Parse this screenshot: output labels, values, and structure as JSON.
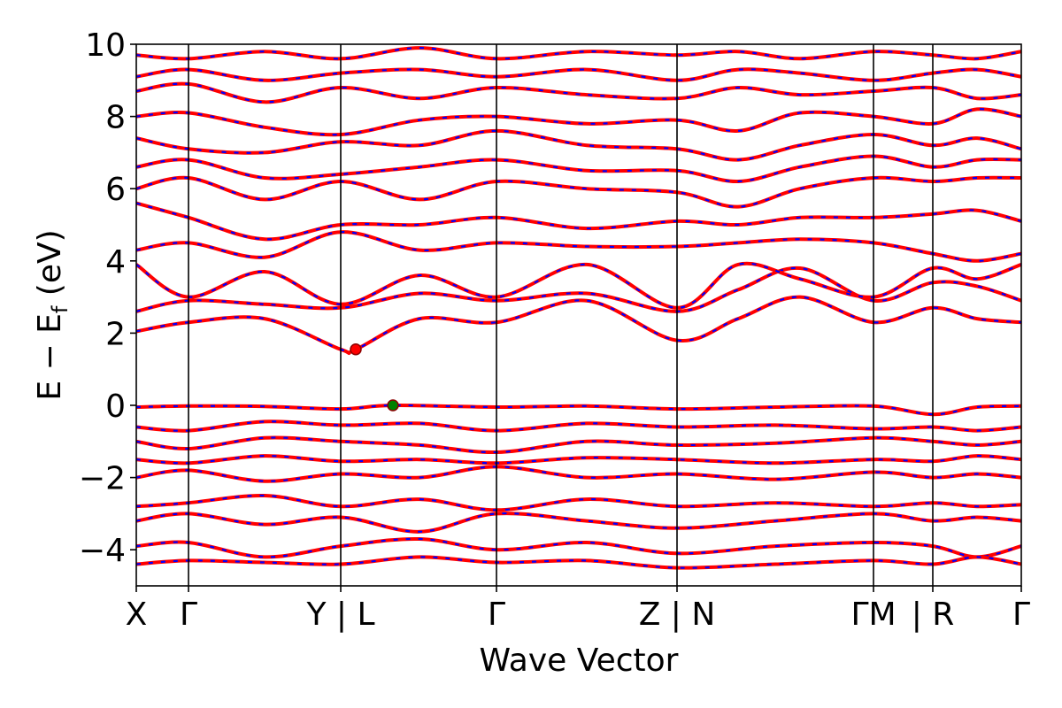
{
  "chart_data": {
    "type": "line",
    "title": "",
    "xlabel": "Wave Vector",
    "ylabel": "E − E_f (eV)",
    "ylabel_main": "E − E",
    "ylabel_sub": "f",
    "ylabel_unit": " (eV)",
    "ylim": [
      -5,
      10
    ],
    "yticks": [
      10,
      8,
      6,
      4,
      2,
      0,
      -2,
      -4
    ],
    "ytick_labels": [
      "10",
      "8",
      "6",
      "4",
      "2",
      "0",
      "−2",
      "−4"
    ],
    "xlim": [
      0,
      1
    ],
    "kpoints": [
      {
        "label": "X",
        "x": 0.0
      },
      {
        "label": "Γ",
        "x": 0.059
      },
      {
        "label": "Y | L",
        "x": 0.231
      },
      {
        "label": "Γ",
        "x": 0.407
      },
      {
        "label": "Z | N",
        "x": 0.611
      },
      {
        "label": "ΓM",
        "x": 0.833
      },
      {
        "label": "| R",
        "x": 0.9
      },
      {
        "label": "Γ",
        "x": 1.0
      }
    ],
    "grid": false,
    "legend": "none",
    "line_style": "red solid with blue dashed overlay",
    "colors": {
      "solid": "#ff0000",
      "dashed": "#0000ff",
      "cbm_marker": "#ff0000",
      "vbm_marker": "#008000"
    },
    "markers": [
      {
        "name": "CBM",
        "x": 0.248,
        "y": 1.55,
        "color": "#ff0000"
      },
      {
        "name": "VBM",
        "x": 0.29,
        "y": 0.0,
        "color": "#008000"
      }
    ],
    "series": [
      {
        "values": [
          [
            0.0,
            -0.05
          ],
          [
            0.059,
            -0.02
          ],
          [
            0.145,
            -0.03
          ],
          [
            0.231,
            -0.1
          ],
          [
            0.29,
            0.0
          ],
          [
            0.407,
            -0.05
          ],
          [
            0.509,
            -0.02
          ],
          [
            0.611,
            -0.1
          ],
          [
            0.722,
            -0.05
          ],
          [
            0.833,
            -0.02
          ],
          [
            0.9,
            -0.25
          ],
          [
            0.95,
            -0.05
          ],
          [
            1.0,
            -0.02
          ]
        ]
      },
      {
        "values": [
          [
            0.0,
            -0.6
          ],
          [
            0.059,
            -0.7
          ],
          [
            0.145,
            -0.45
          ],
          [
            0.231,
            -0.55
          ],
          [
            0.32,
            -0.5
          ],
          [
            0.407,
            -0.7
          ],
          [
            0.509,
            -0.5
          ],
          [
            0.611,
            -0.6
          ],
          [
            0.722,
            -0.55
          ],
          [
            0.833,
            -0.65
          ],
          [
            0.9,
            -0.6
          ],
          [
            0.95,
            -0.7
          ],
          [
            1.0,
            -0.6
          ]
        ]
      },
      {
        "values": [
          [
            0.0,
            -1.0
          ],
          [
            0.059,
            -1.2
          ],
          [
            0.145,
            -0.9
          ],
          [
            0.231,
            -1.0
          ],
          [
            0.32,
            -1.1
          ],
          [
            0.407,
            -1.3
          ],
          [
            0.509,
            -1.0
          ],
          [
            0.611,
            -1.1
          ],
          [
            0.722,
            -1.05
          ],
          [
            0.833,
            -0.9
          ],
          [
            0.9,
            -1.0
          ],
          [
            0.95,
            -1.1
          ],
          [
            1.0,
            -1.0
          ]
        ]
      },
      {
        "values": [
          [
            0.0,
            -1.5
          ],
          [
            0.059,
            -1.6
          ],
          [
            0.145,
            -1.4
          ],
          [
            0.231,
            -1.55
          ],
          [
            0.32,
            -1.5
          ],
          [
            0.407,
            -1.6
          ],
          [
            0.509,
            -1.45
          ],
          [
            0.611,
            -1.5
          ],
          [
            0.722,
            -1.6
          ],
          [
            0.833,
            -1.5
          ],
          [
            0.9,
            -1.55
          ],
          [
            0.95,
            -1.4
          ],
          [
            1.0,
            -1.5
          ]
        ]
      },
      {
        "values": [
          [
            0.0,
            -2.0
          ],
          [
            0.059,
            -1.8
          ],
          [
            0.145,
            -2.1
          ],
          [
            0.231,
            -1.9
          ],
          [
            0.32,
            -2.0
          ],
          [
            0.407,
            -1.7
          ],
          [
            0.509,
            -2.0
          ],
          [
            0.611,
            -1.9
          ],
          [
            0.722,
            -2.05
          ],
          [
            0.833,
            -1.85
          ],
          [
            0.9,
            -2.0
          ],
          [
            0.95,
            -1.9
          ],
          [
            1.0,
            -2.0
          ]
        ]
      },
      {
        "values": [
          [
            0.0,
            -2.8
          ],
          [
            0.059,
            -2.7
          ],
          [
            0.145,
            -2.5
          ],
          [
            0.231,
            -2.8
          ],
          [
            0.32,
            -2.6
          ],
          [
            0.407,
            -2.9
          ],
          [
            0.509,
            -2.6
          ],
          [
            0.611,
            -2.8
          ],
          [
            0.722,
            -2.7
          ],
          [
            0.833,
            -2.8
          ],
          [
            0.9,
            -2.7
          ],
          [
            0.95,
            -2.8
          ],
          [
            1.0,
            -2.75
          ]
        ]
      },
      {
        "values": [
          [
            0.0,
            -3.2
          ],
          [
            0.059,
            -3.0
          ],
          [
            0.145,
            -3.3
          ],
          [
            0.231,
            -3.1
          ],
          [
            0.32,
            -3.5
          ],
          [
            0.407,
            -3.0
          ],
          [
            0.509,
            -3.2
          ],
          [
            0.611,
            -3.4
          ],
          [
            0.722,
            -3.2
          ],
          [
            0.833,
            -3.0
          ],
          [
            0.9,
            -3.2
          ],
          [
            0.95,
            -3.1
          ],
          [
            1.0,
            -3.2
          ]
        ]
      },
      {
        "values": [
          [
            0.0,
            -3.9
          ],
          [
            0.059,
            -3.8
          ],
          [
            0.145,
            -4.2
          ],
          [
            0.231,
            -3.9
          ],
          [
            0.32,
            -3.7
          ],
          [
            0.407,
            -4.0
          ],
          [
            0.509,
            -3.8
          ],
          [
            0.611,
            -4.1
          ],
          [
            0.722,
            -3.9
          ],
          [
            0.833,
            -3.8
          ],
          [
            0.9,
            -3.9
          ],
          [
            0.95,
            -4.2
          ],
          [
            1.0,
            -3.9
          ]
        ]
      },
      {
        "values": [
          [
            0.0,
            -4.4
          ],
          [
            0.059,
            -4.3
          ],
          [
            0.145,
            -4.35
          ],
          [
            0.231,
            -4.4
          ],
          [
            0.32,
            -4.2
          ],
          [
            0.407,
            -4.35
          ],
          [
            0.509,
            -4.3
          ],
          [
            0.611,
            -4.5
          ],
          [
            0.722,
            -4.4
          ],
          [
            0.833,
            -4.3
          ],
          [
            0.9,
            -4.4
          ],
          [
            0.95,
            -4.2
          ],
          [
            1.0,
            -4.4
          ]
        ]
      },
      {
        "values": [
          [
            0.0,
            2.05
          ],
          [
            0.059,
            2.3
          ],
          [
            0.145,
            2.4
          ],
          [
            0.231,
            1.55
          ],
          [
            0.248,
            1.55
          ],
          [
            0.32,
            2.4
          ],
          [
            0.407,
            2.3
          ],
          [
            0.509,
            2.9
          ],
          [
            0.611,
            1.8
          ],
          [
            0.68,
            2.4
          ],
          [
            0.75,
            3.0
          ],
          [
            0.833,
            2.3
          ],
          [
            0.9,
            2.7
          ],
          [
            0.95,
            2.4
          ],
          [
            1.0,
            2.3
          ]
        ]
      },
      {
        "values": [
          [
            0.0,
            2.6
          ],
          [
            0.059,
            2.9
          ],
          [
            0.145,
            2.8
          ],
          [
            0.231,
            2.7
          ],
          [
            0.32,
            3.1
          ],
          [
            0.407,
            2.9
          ],
          [
            0.509,
            3.1
          ],
          [
            0.611,
            2.6
          ],
          [
            0.68,
            3.2
          ],
          [
            0.75,
            3.8
          ],
          [
            0.833,
            2.9
          ],
          [
            0.9,
            3.4
          ],
          [
            0.95,
            3.3
          ],
          [
            1.0,
            2.9
          ]
        ]
      },
      {
        "values": [
          [
            0.0,
            3.9
          ],
          [
            0.059,
            3.0
          ],
          [
            0.145,
            3.7
          ],
          [
            0.231,
            2.8
          ],
          [
            0.32,
            3.6
          ],
          [
            0.407,
            3.0
          ],
          [
            0.509,
            3.9
          ],
          [
            0.611,
            2.7
          ],
          [
            0.68,
            3.9
          ],
          [
            0.75,
            3.5
          ],
          [
            0.833,
            3.0
          ],
          [
            0.9,
            3.8
          ],
          [
            0.95,
            3.5
          ],
          [
            1.0,
            3.9
          ]
        ]
      },
      {
        "values": [
          [
            0.0,
            4.3
          ],
          [
            0.059,
            4.5
          ],
          [
            0.145,
            4.1
          ],
          [
            0.231,
            4.8
          ],
          [
            0.32,
            4.3
          ],
          [
            0.407,
            4.5
          ],
          [
            0.509,
            4.4
          ],
          [
            0.611,
            4.4
          ],
          [
            0.68,
            4.5
          ],
          [
            0.75,
            4.6
          ],
          [
            0.833,
            4.5
          ],
          [
            0.9,
            4.2
          ],
          [
            0.95,
            4.0
          ],
          [
            1.0,
            4.2
          ]
        ]
      },
      {
        "values": [
          [
            0.0,
            5.6
          ],
          [
            0.059,
            5.2
          ],
          [
            0.145,
            4.6
          ],
          [
            0.231,
            5.0
          ],
          [
            0.32,
            5.0
          ],
          [
            0.407,
            5.2
          ],
          [
            0.509,
            4.9
          ],
          [
            0.611,
            5.1
          ],
          [
            0.68,
            5.0
          ],
          [
            0.75,
            5.2
          ],
          [
            0.833,
            5.2
          ],
          [
            0.9,
            5.3
          ],
          [
            0.95,
            5.4
          ],
          [
            1.0,
            5.1
          ]
        ]
      },
      {
        "values": [
          [
            0.0,
            6.0
          ],
          [
            0.059,
            6.3
          ],
          [
            0.145,
            5.7
          ],
          [
            0.231,
            6.2
          ],
          [
            0.32,
            5.7
          ],
          [
            0.407,
            6.2
          ],
          [
            0.509,
            6.0
          ],
          [
            0.611,
            5.9
          ],
          [
            0.68,
            5.5
          ],
          [
            0.75,
            6.0
          ],
          [
            0.833,
            6.3
          ],
          [
            0.9,
            6.2
          ],
          [
            0.95,
            6.3
          ],
          [
            1.0,
            6.3
          ]
        ]
      },
      {
        "values": [
          [
            0.0,
            6.6
          ],
          [
            0.059,
            6.8
          ],
          [
            0.145,
            6.3
          ],
          [
            0.231,
            6.4
          ],
          [
            0.32,
            6.6
          ],
          [
            0.407,
            6.8
          ],
          [
            0.509,
            6.5
          ],
          [
            0.611,
            6.5
          ],
          [
            0.68,
            6.2
          ],
          [
            0.75,
            6.6
          ],
          [
            0.833,
            6.9
          ],
          [
            0.9,
            6.6
          ],
          [
            0.95,
            6.8
          ],
          [
            1.0,
            6.8
          ]
        ]
      },
      {
        "values": [
          [
            0.0,
            7.4
          ],
          [
            0.059,
            7.1
          ],
          [
            0.145,
            7.0
          ],
          [
            0.231,
            7.3
          ],
          [
            0.32,
            7.2
          ],
          [
            0.407,
            7.6
          ],
          [
            0.509,
            7.2
          ],
          [
            0.611,
            7.1
          ],
          [
            0.68,
            6.8
          ],
          [
            0.75,
            7.2
          ],
          [
            0.833,
            7.5
          ],
          [
            0.9,
            7.2
          ],
          [
            0.95,
            7.4
          ],
          [
            1.0,
            7.1
          ]
        ]
      },
      {
        "values": [
          [
            0.0,
            8.0
          ],
          [
            0.059,
            8.1
          ],
          [
            0.145,
            7.7
          ],
          [
            0.231,
            7.5
          ],
          [
            0.32,
            7.9
          ],
          [
            0.407,
            8.0
          ],
          [
            0.509,
            7.8
          ],
          [
            0.611,
            7.9
          ],
          [
            0.68,
            7.6
          ],
          [
            0.75,
            8.1
          ],
          [
            0.833,
            8.0
          ],
          [
            0.9,
            7.8
          ],
          [
            0.95,
            8.2
          ],
          [
            1.0,
            8.0
          ]
        ]
      },
      {
        "values": [
          [
            0.0,
            8.7
          ],
          [
            0.059,
            8.9
          ],
          [
            0.145,
            8.4
          ],
          [
            0.231,
            8.8
          ],
          [
            0.32,
            8.5
          ],
          [
            0.407,
            8.8
          ],
          [
            0.509,
            8.6
          ],
          [
            0.611,
            8.5
          ],
          [
            0.68,
            8.8
          ],
          [
            0.75,
            8.6
          ],
          [
            0.833,
            8.7
          ],
          [
            0.9,
            8.8
          ],
          [
            0.95,
            8.5
          ],
          [
            1.0,
            8.6
          ]
        ]
      },
      {
        "values": [
          [
            0.0,
            9.1
          ],
          [
            0.059,
            9.3
          ],
          [
            0.145,
            9.0
          ],
          [
            0.231,
            9.2
          ],
          [
            0.32,
            9.3
          ],
          [
            0.407,
            9.1
          ],
          [
            0.509,
            9.3
          ],
          [
            0.611,
            9.0
          ],
          [
            0.68,
            9.3
          ],
          [
            0.75,
            9.2
          ],
          [
            0.833,
            9.0
          ],
          [
            0.9,
            9.2
          ],
          [
            0.95,
            9.3
          ],
          [
            1.0,
            9.1
          ]
        ]
      },
      {
        "values": [
          [
            0.0,
            9.7
          ],
          [
            0.059,
            9.6
          ],
          [
            0.145,
            9.8
          ],
          [
            0.231,
            9.6
          ],
          [
            0.32,
            9.9
          ],
          [
            0.407,
            9.6
          ],
          [
            0.509,
            9.8
          ],
          [
            0.611,
            9.7
          ],
          [
            0.68,
            9.8
          ],
          [
            0.75,
            9.6
          ],
          [
            0.833,
            9.8
          ],
          [
            0.9,
            9.7
          ],
          [
            0.95,
            9.6
          ],
          [
            1.0,
            9.8
          ]
        ]
      }
    ]
  }
}
